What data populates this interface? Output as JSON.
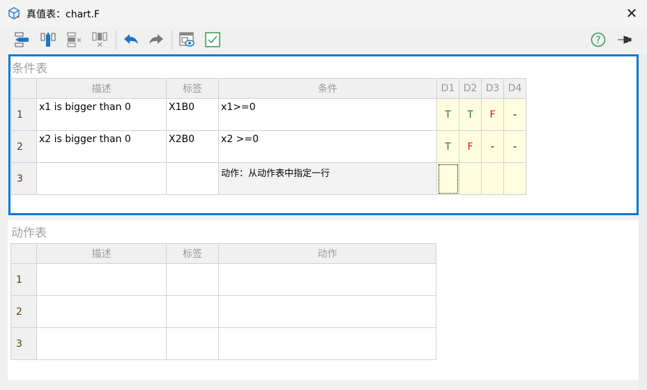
{
  "window": {
    "title": "真值表：chart.F",
    "close_label": "✕"
  },
  "toolbar": {
    "icons": [
      "insert-row-icon",
      "insert-column-icon",
      "delete-row-icon",
      "delete-column-icon",
      "undo-icon",
      "redo-icon",
      "preview-icon",
      "check-icon",
      "help-icon",
      "pin-icon"
    ],
    "help_label": "?"
  },
  "colors": {
    "accent": "#0a78d4",
    "true": "#1a7a1a",
    "false": "#e01010",
    "decision_bg": "#fffde0"
  },
  "conditions": {
    "title": "条件表",
    "headers": [
      "",
      "描述",
      "标签",
      "条件",
      "D1",
      "D2",
      "D3",
      "D4"
    ],
    "rows": [
      {
        "num": "1",
        "desc": "x1 is bigger than 0",
        "label": "X1B0",
        "cond": "x1>=0",
        "d": [
          "T",
          "T",
          "F",
          "-"
        ]
      },
      {
        "num": "2",
        "desc": "x2 is bigger than 0",
        "label": "X2B0",
        "cond": "x2 >=0",
        "d": [
          "T",
          "F",
          "-",
          "-"
        ]
      },
      {
        "num": "3",
        "desc": "",
        "label": "",
        "cond": "动作：从动作表中指定一行",
        "d": [
          "",
          "",
          "",
          ""
        ]
      }
    ]
  },
  "actions": {
    "title": "动作表",
    "headers": [
      "",
      "描述",
      "标签",
      "动作"
    ],
    "rows": [
      {
        "num": "1",
        "desc": "",
        "label": "",
        "action": ""
      },
      {
        "num": "2",
        "desc": "",
        "label": "",
        "action": ""
      },
      {
        "num": "3",
        "desc": "",
        "label": "",
        "action": ""
      }
    ]
  }
}
